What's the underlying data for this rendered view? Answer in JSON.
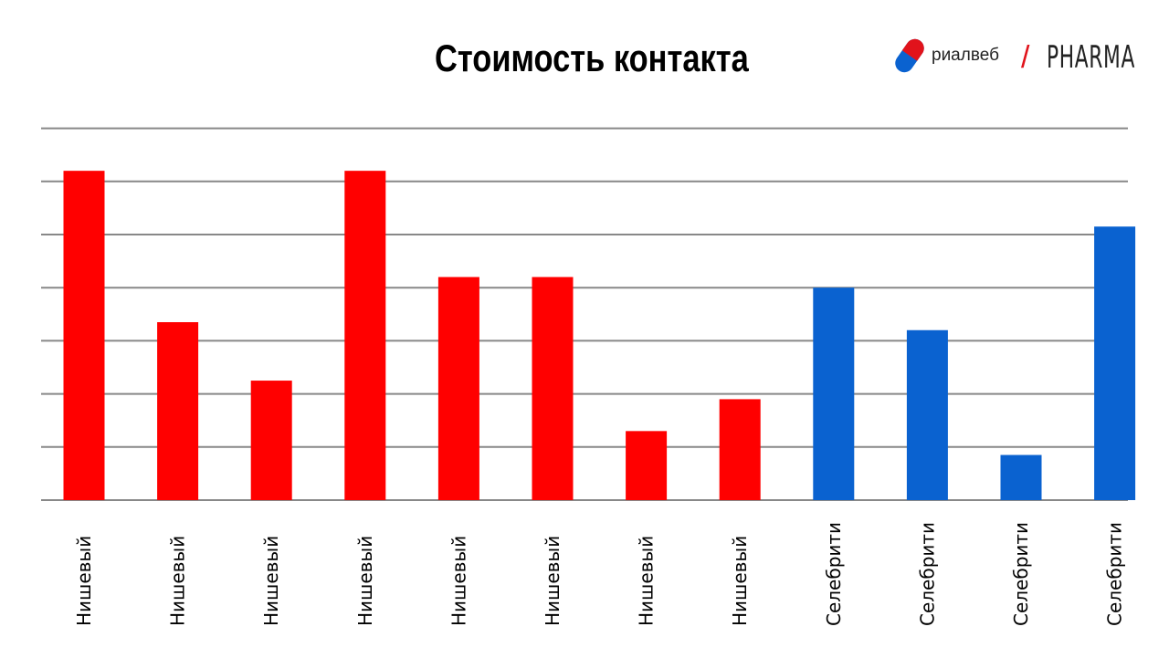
{
  "title": "Стоимость контакта",
  "logo": {
    "brand": "риалвеб",
    "separator": "/",
    "product": "PHARMA",
    "colors": {
      "red": "#e1131b",
      "blue": "#0a62d0"
    }
  },
  "chart_data": {
    "type": "bar",
    "title": "Стоимость контакта",
    "xlabel": "",
    "ylabel": "",
    "ylim": [
      0,
      7
    ],
    "grid": true,
    "tick_labels_shown": false,
    "categories": [
      "Нишевый",
      "Нишевый",
      "Нишевый",
      "Нишевый",
      "Нишевый",
      "Нишевый",
      "Нишевый",
      "Нишевый",
      "Селебрити",
      "Селебрити",
      "Селебрити",
      "Селебрити"
    ],
    "values": [
      6.2,
      3.35,
      2.25,
      6.2,
      4.2,
      4.2,
      1.3,
      1.9,
      4.0,
      3.2,
      0.85,
      5.15
    ],
    "colors": [
      "#ff0000",
      "#ff0000",
      "#ff0000",
      "#ff0000",
      "#ff0000",
      "#ff0000",
      "#ff0000",
      "#ff0000",
      "#0a62d0",
      "#0a62d0",
      "#0a62d0",
      "#0a62d0"
    ],
    "gridline_color": "#888888"
  }
}
